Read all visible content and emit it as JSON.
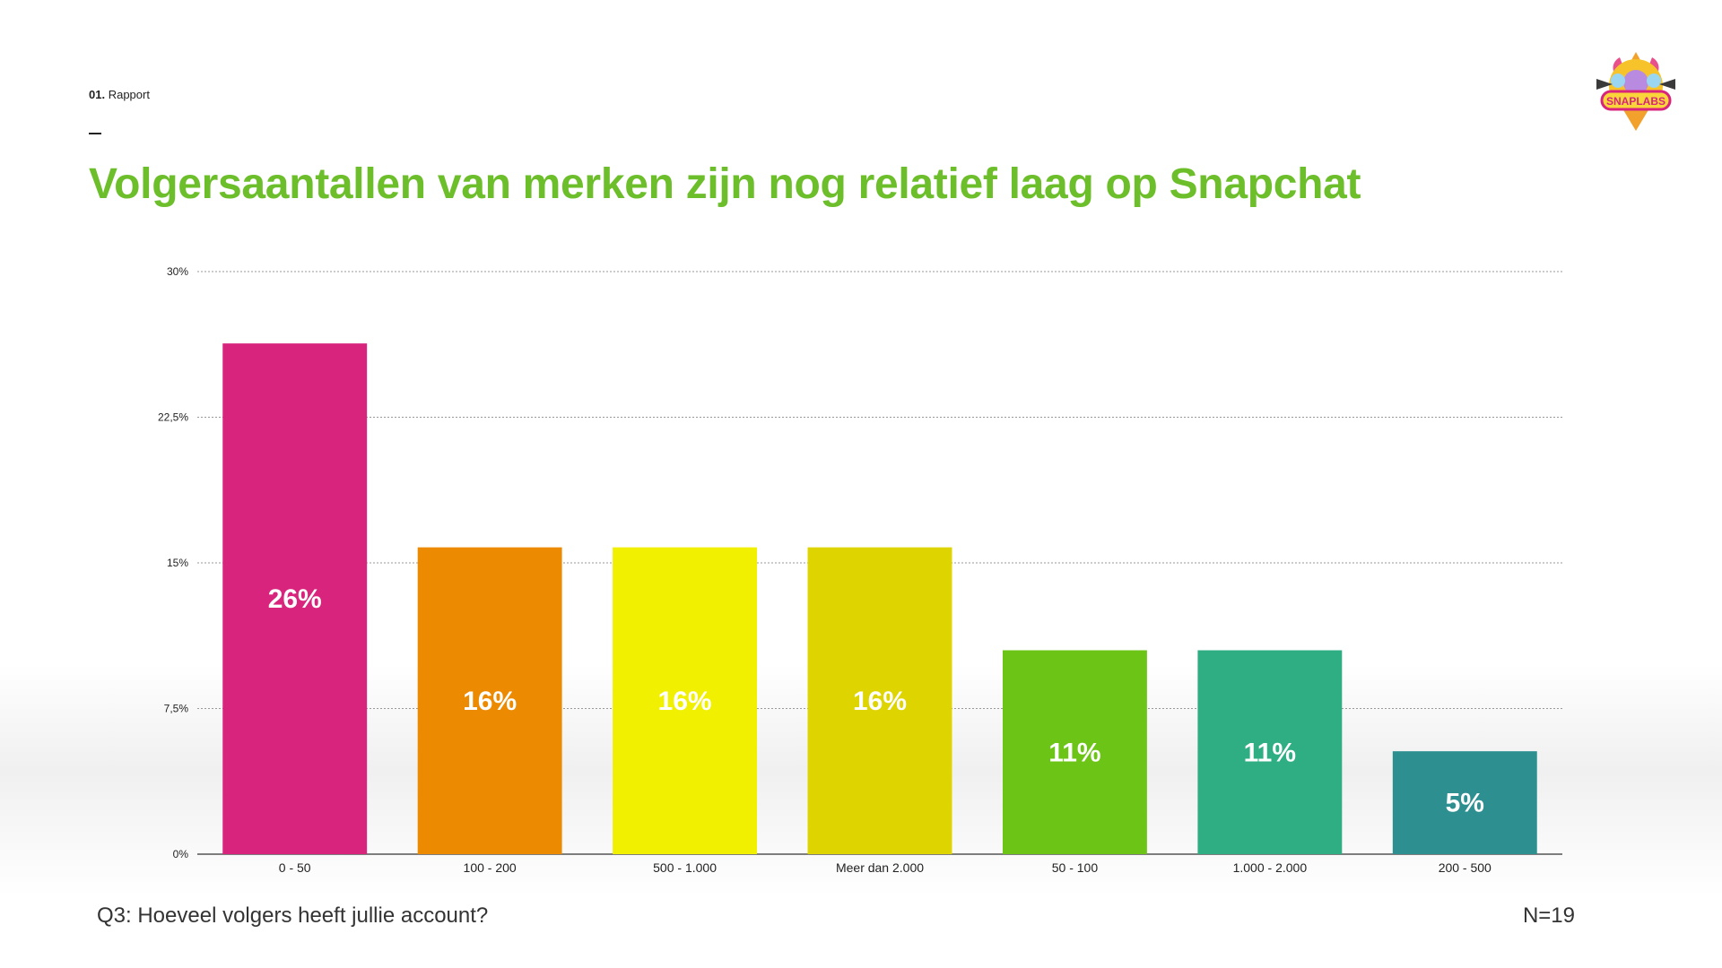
{
  "header": {
    "section_number": "01.",
    "section_name": "Rapport",
    "title": "Volgersaantallen van merken zijn nog relatief laag op Snapchat"
  },
  "logo": {
    "text": "SNAPLABS",
    "icon": "unicorn-badge-icon"
  },
  "footer": {
    "question": "Q3: Hoeveel volgers heeft jullie account?",
    "n_label": "N=19"
  },
  "chart_data": {
    "type": "bar",
    "title": "Volgersaantallen van merken zijn nog relatief laag op Snapchat",
    "xlabel": "",
    "ylabel": "",
    "categories": [
      "0 - 50",
      "100 - 200",
      "500 - 1.000",
      "Meer dan 2.000",
      "50 - 100",
      "1.000 - 2.000",
      "200 - 500"
    ],
    "values": [
      26.3,
      15.8,
      15.8,
      15.8,
      10.5,
      10.5,
      5.3
    ],
    "value_labels": [
      "26%",
      "16%",
      "16%",
      "16%",
      "11%",
      "11%",
      "5%"
    ],
    "colors": [
      "#d8247c",
      "#ec8a02",
      "#f0f000",
      "#ddd400",
      "#6cc516",
      "#2fae83",
      "#2e8f91"
    ],
    "ylim": [
      0,
      30
    ],
    "yticks": [
      0,
      7.5,
      15,
      22.5,
      30
    ],
    "ytick_labels": [
      "0%",
      "7,5%",
      "15%",
      "22,5%",
      "30%"
    ],
    "grid": true
  }
}
